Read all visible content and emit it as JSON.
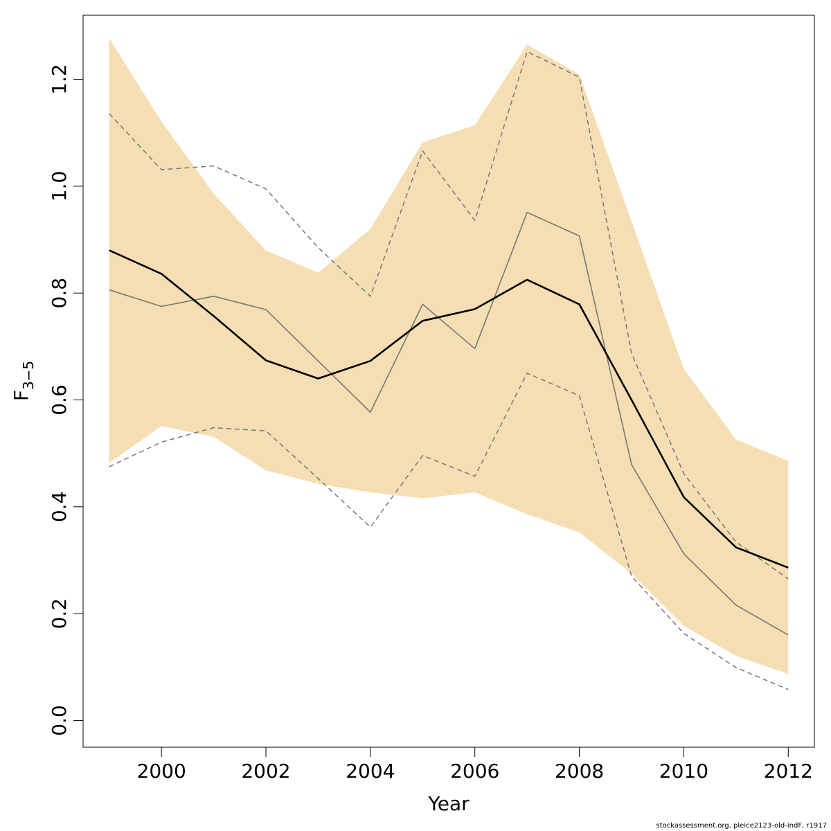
{
  "chart_data": {
    "type": "line",
    "xlabel": "Year",
    "ylabel": {
      "base": "F",
      "subscript": "3−5"
    },
    "xlim": [
      1998.5,
      2012.5
    ],
    "ylim": [
      -0.05,
      1.32
    ],
    "x_ticks": [
      2000,
      2002,
      2004,
      2006,
      2008,
      2010,
      2012
    ],
    "x_tick_labels": [
      "2000",
      "2002",
      "2004",
      "2006",
      "2008",
      "2010",
      "2012"
    ],
    "y_ticks": [
      0.0,
      0.2,
      0.4,
      0.6,
      0.8,
      1.0,
      1.2
    ],
    "y_tick_labels": [
      "0.0",
      "0.2",
      "0.4",
      "0.6",
      "0.8",
      "1.0",
      "1.2"
    ],
    "grid": false,
    "x": [
      1999,
      2000,
      2001,
      2002,
      2003,
      2004,
      2005,
      2006,
      2007,
      2008,
      2009,
      2010,
      2011,
      2012
    ],
    "band": {
      "color": "#f5deb3",
      "lower": [
        0.482,
        0.551,
        0.531,
        0.468,
        0.443,
        0.427,
        0.416,
        0.427,
        0.386,
        0.352,
        0.275,
        0.177,
        0.121,
        0.087
      ],
      "upper": [
        1.277,
        1.121,
        0.986,
        0.88,
        0.838,
        0.92,
        1.082,
        1.114,
        1.265,
        1.209,
        0.934,
        0.658,
        0.526,
        0.486
      ]
    },
    "series": [
      {
        "style": "estimate",
        "color": "#000000",
        "values": [
          0.88,
          0.836,
          0.757,
          0.674,
          0.64,
          0.673,
          0.748,
          0.77,
          0.825,
          0.779,
          0.6,
          0.418,
          0.324,
          0.286
        ]
      },
      {
        "style": "thin",
        "color": "#777777",
        "values": [
          0.806,
          0.775,
          0.794,
          0.769,
          0.673,
          0.577,
          0.779,
          0.696,
          0.951,
          0.907,
          0.479,
          0.312,
          0.216,
          0.16
        ]
      },
      {
        "style": "dashed",
        "color": "#777777",
        "values": [
          1.136,
          1.031,
          1.038,
          0.995,
          0.885,
          0.794,
          1.066,
          0.936,
          1.252,
          1.204,
          0.687,
          0.462,
          0.334,
          0.265
        ]
      },
      {
        "style": "dashed",
        "color": "#777777",
        "values": [
          0.475,
          0.521,
          0.548,
          0.542,
          0.453,
          0.362,
          0.496,
          0.457,
          0.65,
          0.608,
          0.27,
          0.163,
          0.099,
          0.058
        ]
      }
    ]
  },
  "footer": "stockassessment.org, pleice2123-old-indF, r1917"
}
